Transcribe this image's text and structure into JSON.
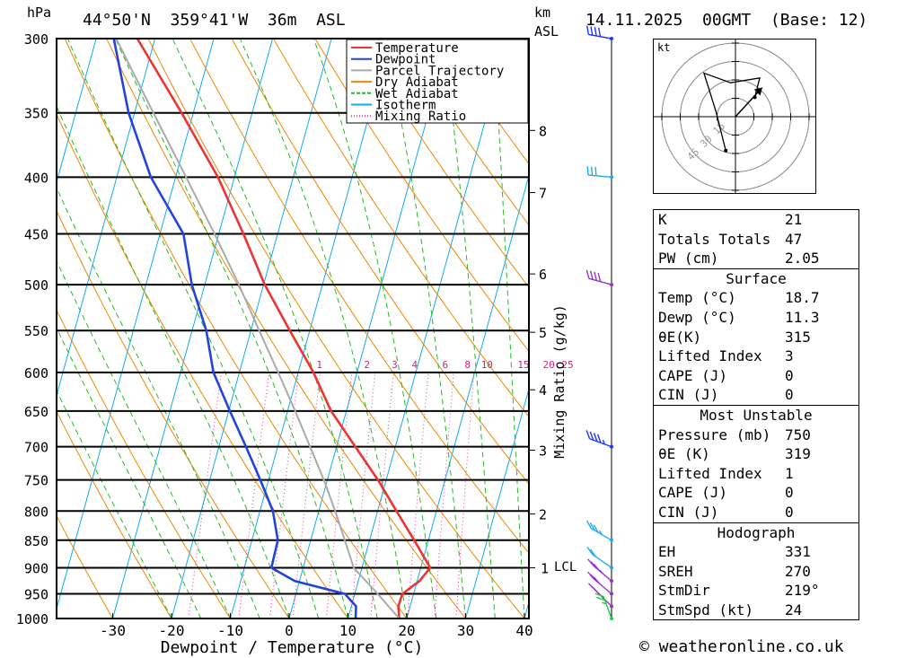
{
  "header": {
    "location": "44°50'N  359°41'W  36m  ASL",
    "datetime": "14.11.2025  00GMT  (Base: 12)",
    "pressure_unit": "hPa",
    "height_unit_km": "km",
    "height_unit_asl": "ASL"
  },
  "chart_data": {
    "type": "skew-t",
    "title": "44°50'N  359°41'W  36m  ASL",
    "xlabel": "Dewpoint / Temperature (°C)",
    "ylabel": "hPa",
    "y2label": "Mixing Ratio (g/kg)",
    "xlim": [
      -40,
      40
    ],
    "ylim": [
      1000,
      300
    ],
    "skew_deg_per_decade": 52,
    "x_ticks": [
      -30,
      -20,
      -10,
      0,
      10,
      20,
      30,
      40
    ],
    "pressure_levels": [
      300,
      350,
      400,
      450,
      500,
      550,
      600,
      650,
      700,
      750,
      800,
      850,
      900,
      950,
      1000
    ],
    "km_ticks": [
      {
        "km": 1,
        "p": 900
      },
      {
        "km": 2,
        "p": 805
      },
      {
        "km": 3,
        "p": 705
      },
      {
        "km": 4,
        "p": 622
      },
      {
        "km": 5,
        "p": 552
      },
      {
        "km": 6,
        "p": 489
      },
      {
        "km": 7,
        "p": 413
      },
      {
        "km": 8,
        "p": 363
      }
    ],
    "lcl_label": "LCL",
    "lcl_pressure": 900,
    "mixing_ratio_labels": [
      {
        "label": "1",
        "t": -6.4
      },
      {
        "label": "2",
        "t": 1.7
      },
      {
        "label": "3",
        "t": 6.4
      },
      {
        "label": "4",
        "t": 9.8
      },
      {
        "label": "6",
        "t": 15.0
      },
      {
        "label": "8",
        "t": 18.8
      },
      {
        "label": "10",
        "t": 22.1
      },
      {
        "label": "15",
        "t": 28.3
      },
      {
        "label": "20",
        "t": 32.6
      },
      {
        "label": "25",
        "t": 35.8
      }
    ],
    "legend": [
      {
        "name": "Temperature",
        "color": "#ee3333"
      },
      {
        "name": "Dewpoint",
        "color": "#2244dd"
      },
      {
        "name": "Parcel Trajectory",
        "color": "#aaaaaa"
      },
      {
        "name": "Dry Adiabat",
        "color": "#ee8800"
      },
      {
        "name": "Wet Adiabat",
        "color": "#22bb22"
      },
      {
        "name": "Isotherm",
        "color": "#11aaee"
      },
      {
        "name": "Mixing Ratio",
        "color": "#ee3399"
      }
    ],
    "series": [
      {
        "name": "Temperature",
        "color": "#ee3333",
        "points": [
          [
            1000,
            18.7
          ],
          [
            975,
            18.0
          ],
          [
            950,
            18.1
          ],
          [
            925,
            20.4
          ],
          [
            900,
            21.6
          ],
          [
            850,
            17.6
          ],
          [
            800,
            13.2
          ],
          [
            750,
            8.6
          ],
          [
            700,
            3.2
          ],
          [
            650,
            -2.6
          ],
          [
            600,
            -7.4
          ],
          [
            550,
            -13.4
          ],
          [
            500,
            -19.8
          ],
          [
            450,
            -25.8
          ],
          [
            400,
            -32.8
          ],
          [
            350,
            -42.0
          ],
          [
            300,
            -53.0
          ]
        ]
      },
      {
        "name": "Dewpoint",
        "color": "#2244dd",
        "points": [
          [
            1000,
            11.3
          ],
          [
            975,
            10.8
          ],
          [
            950,
            8.3
          ],
          [
            925,
            -0.8
          ],
          [
            900,
            -5.4
          ],
          [
            850,
            -5.6
          ],
          [
            800,
            -7.8
          ],
          [
            750,
            -11.4
          ],
          [
            700,
            -15.4
          ],
          [
            650,
            -19.8
          ],
          [
            600,
            -24.4
          ],
          [
            550,
            -27.6
          ],
          [
            500,
            -32.2
          ],
          [
            450,
            -36.0
          ],
          [
            400,
            -44.2
          ],
          [
            350,
            -51.0
          ],
          [
            300,
            -57.0
          ]
        ]
      },
      {
        "name": "Parcel Trajectory",
        "color": "#aaaaaa",
        "points": [
          [
            1000,
            18.7
          ],
          [
            950,
            13.9
          ],
          [
            900,
            8.6
          ],
          [
            850,
            5.8
          ],
          [
            800,
            2.8
          ],
          [
            750,
            -0.6
          ],
          [
            700,
            -4.5
          ],
          [
            650,
            -8.7
          ],
          [
            600,
            -13.4
          ],
          [
            550,
            -18.6
          ],
          [
            500,
            -24.2
          ],
          [
            450,
            -30.7
          ],
          [
            400,
            -38.2
          ],
          [
            350,
            -46.8
          ],
          [
            300,
            -56.6
          ]
        ]
      }
    ]
  },
  "wind_barbs": [
    {
      "p": 300,
      "color": "#2233ff",
      "dir": 260,
      "kt": 40
    },
    {
      "p": 400,
      "color": "#22aaee",
      "dir": 265,
      "kt": 30
    },
    {
      "p": 500,
      "color": "#9933cc",
      "dir": 255,
      "kt": 40
    },
    {
      "p": 700,
      "color": "#2233ff",
      "dir": 250,
      "kt": 35
    },
    {
      "p": 850,
      "color": "#22aaee",
      "dir": 240,
      "kt": 25
    },
    {
      "p": 900,
      "color": "#22aaee",
      "dir": 235,
      "kt": 20
    },
    {
      "p": 925,
      "color": "#9933cc",
      "dir": 230,
      "kt": 25
    },
    {
      "p": 950,
      "color": "#9933cc",
      "dir": 230,
      "kt": 30
    },
    {
      "p": 975,
      "color": "#9933cc",
      "dir": 225,
      "kt": 25
    },
    {
      "p": 1000,
      "color": "#22cc44",
      "dir": 200,
      "kt": 15
    }
  ],
  "hodograph": {
    "unit_label": "kt",
    "ring_labels": [
      "15",
      "30",
      "45"
    ],
    "trace": [
      [
        -4,
        -14
      ],
      [
        -8,
        2
      ],
      [
        -13,
        18
      ],
      [
        -2,
        14
      ],
      [
        10,
        16
      ],
      [
        8,
        8
      ]
    ],
    "storm_motion": [
      11,
      12
    ]
  },
  "indices": {
    "top": [
      {
        "label": "K",
        "value": "21"
      },
      {
        "label": "Totals Totals",
        "value": "47"
      },
      {
        "label": "PW (cm)",
        "value": "2.05"
      }
    ],
    "surface": {
      "title": "Surface",
      "rows": [
        {
          "label": "Temp (°C)",
          "value": "18.7"
        },
        {
          "label": "Dewp (°C)",
          "value": "11.3"
        },
        {
          "label": "θE(K)",
          "value": "315"
        },
        {
          "label": "Lifted Index",
          "value": "3"
        },
        {
          "label": "CAPE (J)",
          "value": "0"
        },
        {
          "label": "CIN (J)",
          "value": "0"
        }
      ]
    },
    "most_unstable": {
      "title": "Most Unstable",
      "rows": [
        {
          "label": "Pressure (mb)",
          "value": "750"
        },
        {
          "label": "θE (K)",
          "value": "319"
        },
        {
          "label": "Lifted Index",
          "value": "1"
        },
        {
          "label": "CAPE (J)",
          "value": "0"
        },
        {
          "label": "CIN (J)",
          "value": "0"
        }
      ]
    },
    "hodograph_params": {
      "title": "Hodograph",
      "rows": [
        {
          "label": "EH",
          "value": "331"
        },
        {
          "label": "SREH",
          "value": "270"
        },
        {
          "label": "StmDir",
          "value": "219°"
        },
        {
          "label": "StmSpd (kt)",
          "value": "24"
        }
      ]
    }
  },
  "credit": "© weatheronline.co.uk"
}
